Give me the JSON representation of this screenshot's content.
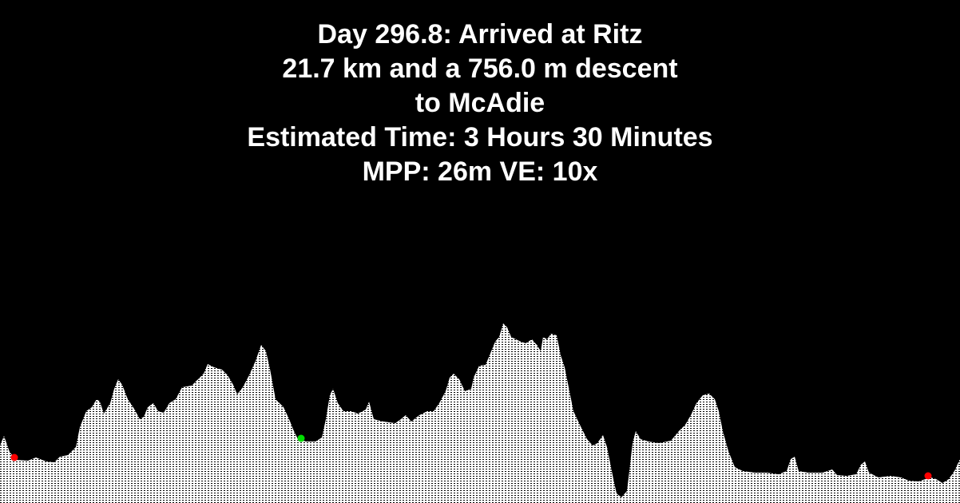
{
  "header": {
    "line1": "Day 296.8: Arrived at Ritz",
    "line2": "21.7 km and a 756.0 m descent",
    "line3": "to McAdie",
    "line4": "Estimated Time: 3 Hours 30 Minutes",
    "line5": "MPP: 26m VE: 10x"
  },
  "colors": {
    "background": "#000000",
    "text": "#ffffff",
    "terrain_fill": "#ffffff",
    "terrain_hatch": "#000000",
    "marker_red": "#ff0000",
    "marker_green": "#00dd00"
  }
}
